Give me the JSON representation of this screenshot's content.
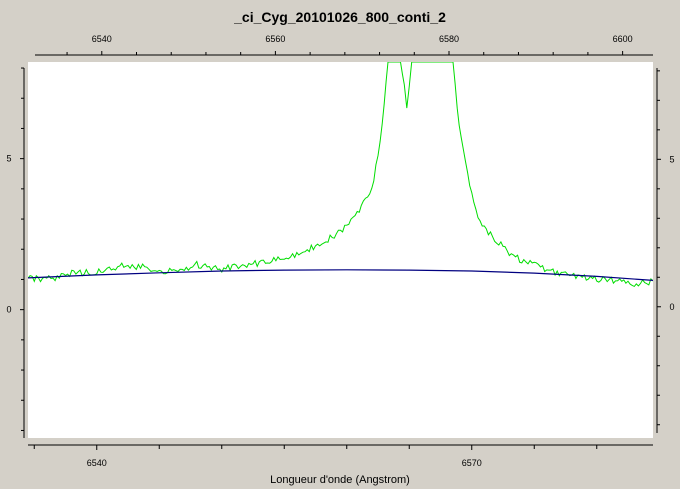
{
  "chart_data": {
    "type": "line",
    "title": "_ci_Cyg_20101026_800_conti_2",
    "xlabel": "Longueur d'onde (Angstrom)",
    "bottom_axis": {
      "range": [
        6534.5,
        6584.5
      ],
      "ticks": [
        6540,
        6570
      ]
    },
    "top_axis": {
      "range": [
        6531.5,
        6603.5
      ],
      "ticks": [
        6540,
        6560,
        6580,
        6600
      ]
    },
    "left_axis": {
      "range": [
        -4.25,
        8.2
      ],
      "ticks": [
        0,
        5
      ]
    },
    "right_axis": {
      "range": [
        -4.45,
        8.3
      ],
      "ticks": [
        0,
        5
      ]
    },
    "grid": false,
    "colors": {
      "spectrum": "#00dd00",
      "continuum": "#000080",
      "background": "#d4d0c8",
      "plot_area": "#ffffff"
    },
    "series": [
      {
        "color": "#00dd00",
        "x": [
          6534.5,
          6536,
          6538,
          6540,
          6542,
          6544,
          6546,
          6548,
          6550,
          6552,
          6554,
          6555,
          6556,
          6557,
          6558,
          6559,
          6560,
          6561,
          6562,
          6562.5,
          6563,
          6563.3,
          6563.5,
          6564,
          6564.3,
          6564.6,
          6564.8,
          6565,
          6565.2,
          6565.5,
          6566,
          6566.5,
          6567,
          6567.5,
          6568,
          6568.5,
          6569,
          6569.5,
          6570,
          6570.5,
          6571,
          6572,
          6573,
          6574,
          6575,
          6576,
          6577,
          6578,
          6579,
          6580,
          6581,
          6582,
          6583,
          6584.5
        ],
        "values": [
          1.05,
          1.0,
          1.2,
          1.25,
          1.45,
          1.4,
          1.25,
          1.5,
          1.35,
          1.5,
          1.6,
          1.75,
          1.85,
          2.0,
          2.2,
          2.45,
          2.8,
          3.3,
          4.0,
          5.1,
          6.8,
          8.2,
          8.2,
          8.2,
          8.2,
          7.5,
          6.6,
          7.5,
          8.2,
          8.2,
          8.2,
          8.2,
          8.2,
          8.2,
          8.2,
          8.2,
          6.0,
          4.8,
          3.8,
          3.1,
          2.7,
          2.3,
          1.9,
          1.6,
          1.5,
          1.3,
          1.2,
          1.1,
          1.1,
          1.0,
          1.0,
          0.9,
          0.85,
          0.95
        ]
      },
      {
        "color": "#000080",
        "x": [
          6534.5,
          6540,
          6545,
          6550,
          6555,
          6560,
          6565,
          6570,
          6575,
          6580,
          6584.5
        ],
        "values": [
          1.05,
          1.15,
          1.22,
          1.28,
          1.31,
          1.32,
          1.31,
          1.28,
          1.21,
          1.1,
          0.97
        ]
      }
    ]
  }
}
